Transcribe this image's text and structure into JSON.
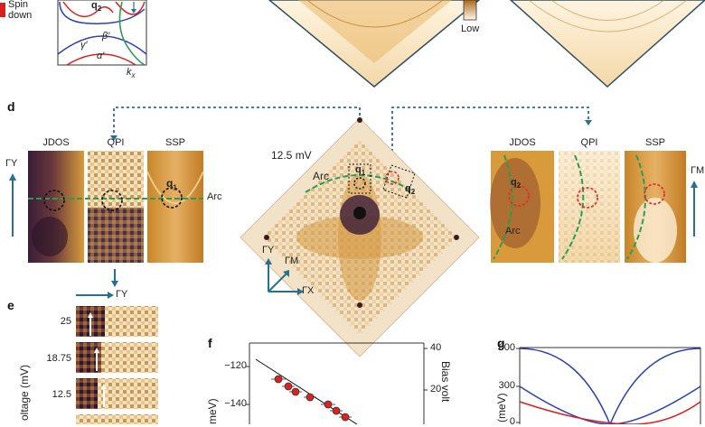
{
  "legend": {
    "spin_line1": "Spin",
    "spin_line2": "down",
    "low": "Low"
  },
  "panel_c": {
    "q2": "q",
    "q2_sub": "2",
    "beta": "β′",
    "gamma": "γ′",
    "alpha": "α′",
    "kx": "k",
    "kx_sub": "x"
  },
  "panel_d": {
    "letter": "d",
    "left_titles": [
      "JDOS",
      "QPI",
      "SSP"
    ],
    "right_titles": [
      "JDOS",
      "QPI",
      "SSP"
    ],
    "left_axis": "ΓY",
    "right_axis": "ΓM",
    "arc_left": "Arc",
    "q1_left": "q",
    "q1_left_sub": "1",
    "energy": "12.5 mV",
    "center_arc": "Arc",
    "center_q1": "q",
    "center_q1_sub": "1",
    "center_q2": "q",
    "center_q2_sub": "2",
    "axis_gy": "ΓY",
    "axis_gm": "ΓM",
    "axis_gx": "ΓX",
    "right_q2": "q",
    "right_q2_sub": "2",
    "right_arc": "Arc"
  },
  "panel_e": {
    "letter": "e",
    "axis": "ΓY",
    "ylabel": "oltage (mV)",
    "voltages": [
      "25",
      "18.75",
      "12.5"
    ]
  },
  "panel_f": {
    "letter": "f",
    "ylabel": "meV)",
    "right_label": "Bias volt",
    "left_ticks": [
      "−120",
      "−140"
    ],
    "right_ticks": [
      "40",
      "20"
    ]
  },
  "panel_g": {
    "letter": "g",
    "ylabel": "(meV)",
    "ticks": [
      "600",
      "300",
      "0"
    ]
  },
  "colors": {
    "accent": "#2a6f8f",
    "arc": "#2a9d55",
    "dashed_red": "#e03030",
    "marker": "#dd2222"
  }
}
